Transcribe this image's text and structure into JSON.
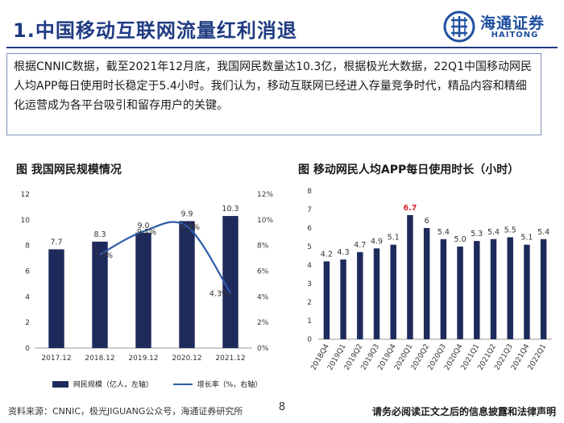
{
  "header": {
    "title": "1.中国移动互联网流量红利消退",
    "logo_cn": "海通证券",
    "logo_en": "HAITONG",
    "logo_icon": "haitong-logo-icon"
  },
  "summary": {
    "text": "根据CNNIC数据，截至2021年12月底，我国网民数量达10.3亿，根据极光大数据，22Q1中国移动网民人均APP每日使用时长稳定于5.4小时。我们认为，移动互联网已经进入存量竞争时代，精品内容和精细化运营成为各平台吸引和留存用户的关键。"
  },
  "colors": {
    "bar": "#1f2a5c",
    "line": "#2e5aa8",
    "highlight": "#d62728",
    "accent": "#1f3b82"
  },
  "chart_data": [
    {
      "type": "bar",
      "title": "图 我国网民规模情况",
      "categories": [
        "2017.12",
        "2018.12",
        "2019.12",
        "2020.12",
        "2021.12"
      ],
      "series": [
        {
          "name": "网民规模（亿人，左轴）",
          "type": "bar",
          "axis": "left",
          "values": [
            7.7,
            8.3,
            9.0,
            9.9,
            10.3
          ],
          "labels": [
            "7.7",
            "8.3",
            "9.0",
            "9.9",
            "10.3"
          ]
        },
        {
          "name": "增长率（%，右轴）",
          "type": "line",
          "axis": "right",
          "values": [
            null,
            7.3,
            9.1,
            9.5,
            4.3
          ],
          "labels": [
            "",
            "7.3%",
            "9.1%",
            "9.5%",
            "4.3%"
          ]
        }
      ],
      "y_left": {
        "min": 0,
        "max": 12,
        "ticks": [
          "0",
          "2",
          "4",
          "6",
          "8",
          "10",
          "12"
        ]
      },
      "y_right": {
        "min": 0,
        "max": 12,
        "ticks": [
          "0%",
          "2%",
          "4%",
          "6%",
          "8%",
          "10%",
          "12%"
        ]
      },
      "grid": false,
      "legend": "bottom"
    },
    {
      "type": "bar",
      "title": "图 移动网民人均APP每日使用时长（小时）",
      "categories": [
        "2018Q4",
        "2019Q1",
        "2019Q2",
        "2019Q3",
        "2019Q4",
        "2020Q1",
        "2020Q2",
        "2020Q3",
        "2020Q4",
        "2021Q1",
        "2021Q2",
        "2021Q3",
        "2021Q4",
        "2022Q1"
      ],
      "values": [
        4.2,
        4.3,
        4.7,
        4.9,
        5.1,
        6.7,
        6.0,
        5.4,
        5.0,
        5.3,
        5.4,
        5.5,
        5.1,
        5.4
      ],
      "labels": [
        "4.2",
        "4.3",
        "4.7",
        "4.9",
        "5.1",
        "6.7",
        "6",
        "5.4",
        "5.0",
        "5.3",
        "5.4",
        "5.5",
        "5.1",
        "5.4"
      ],
      "highlight_index": 5,
      "ylim": [
        0,
        8
      ],
      "y_ticks": [
        "0",
        "1",
        "2",
        "3",
        "4",
        "5",
        "6",
        "7",
        "8"
      ],
      "grid": false,
      "legend": "none"
    }
  ],
  "footer": {
    "source": "资料来源：CNNIC，极光JIGUANG公众号，海通证券研究所",
    "page_number": "8",
    "disclaimer": "请务必阅读正文之后的信息披露和法律声明"
  }
}
